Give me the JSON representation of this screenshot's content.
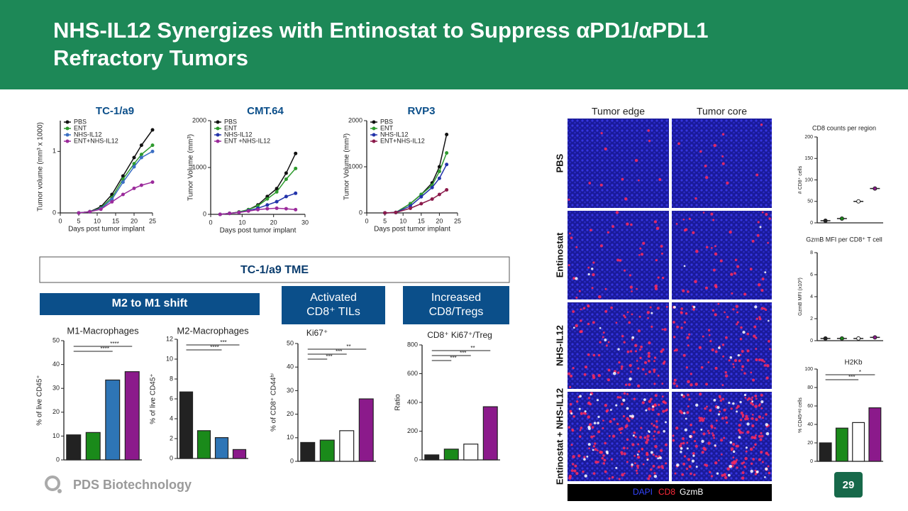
{
  "header": {
    "title_lines": [
      "NHS-IL12 Synergizes with Entinostat to Suppress αPD1/αPDL1",
      "Refractory Tumors"
    ]
  },
  "section": "TC-1/a9 TME",
  "boxes": [
    {
      "lines": [
        "M2 to M1 shift"
      ]
    },
    {
      "lines": [
        "Activated",
        "CD8⁺ TILs"
      ]
    },
    {
      "lines": [
        "Increased",
        "CD8/Tregs"
      ]
    }
  ],
  "charts": [
    {
      "type": "line",
      "title": "TC-1/a9",
      "xlabel": "Days post tumor implant",
      "ylabel": "Tumor volume (mm³ x 1000)",
      "xlim": [
        0,
        25
      ],
      "xticks": [
        0,
        5,
        10,
        15,
        20,
        25
      ],
      "ylim": [
        0,
        1.5
      ],
      "yticks": [
        0,
        1
      ],
      "x": [
        5,
        8,
        11,
        14,
        17,
        20,
        22,
        25
      ],
      "series": [
        {
          "name": "PBS",
          "color": "#111111",
          "values": [
            0,
            0.02,
            0.1,
            0.3,
            0.6,
            0.9,
            1.1,
            1.35
          ]
        },
        {
          "name": "ENT",
          "color": "#2e9a2e",
          "values": [
            0,
            0.02,
            0.08,
            0.25,
            0.55,
            0.8,
            0.95,
            1.1
          ]
        },
        {
          "name": "NHS-IL12",
          "color": "#3b6fc4",
          "values": [
            0,
            0.02,
            0.07,
            0.22,
            0.5,
            0.75,
            0.9,
            1.0
          ]
        },
        {
          "name": "ENT+NHS-IL12",
          "color": "#9b2a9b",
          "values": [
            0,
            0.02,
            0.06,
            0.18,
            0.3,
            0.4,
            0.45,
            0.5
          ]
        }
      ]
    },
    {
      "type": "line",
      "title": "CMT.64",
      "xlabel": "Days post tumor implant",
      "ylabel": "Tumor Volume (mm³)",
      "xlim": [
        0,
        30
      ],
      "xticks": [
        0,
        10,
        20,
        30
      ],
      "ylim": [
        0,
        2000
      ],
      "yticks": [
        0,
        1000,
        2000
      ],
      "x": [
        3,
        6,
        9,
        12,
        15,
        18,
        21,
        24,
        27
      ],
      "series": [
        {
          "name": "PBS",
          "color": "#111111",
          "values": [
            0,
            20,
            50,
            100,
            200,
            380,
            550,
            880,
            1300
          ]
        },
        {
          "name": "ENT",
          "color": "#2e9a2e",
          "values": [
            0,
            20,
            50,
            100,
            180,
            330,
            480,
            750,
            980
          ]
        },
        {
          "name": "NHS-IL12",
          "color": "#2233aa",
          "values": [
            0,
            20,
            40,
            80,
            130,
            200,
            270,
            380,
            450
          ]
        },
        {
          "name": "ENT +NHS-IL12",
          "color": "#9b2a9b",
          "values": [
            0,
            20,
            40,
            70,
            100,
            120,
            130,
            120,
            100
          ]
        }
      ]
    },
    {
      "type": "line",
      "title": "RVP3",
      "xlabel": "Days post tumor implant",
      "ylabel": "Tumor Volume (mm³)",
      "xlim": [
        0,
        25
      ],
      "xticks": [
        0,
        5,
        10,
        15,
        20,
        25
      ],
      "ylim": [
        0,
        2000
      ],
      "yticks": [
        0,
        1000,
        2000
      ],
      "x": [
        5,
        8,
        12,
        15,
        18,
        20,
        22
      ],
      "series": [
        {
          "name": "PBS",
          "color": "#111111",
          "values": [
            0,
            10,
            200,
            400,
            650,
            1000,
            1700
          ]
        },
        {
          "name": "ENT",
          "color": "#2e9a2e",
          "values": [
            0,
            10,
            200,
            400,
            600,
            900,
            1300
          ]
        },
        {
          "name": "NHS-IL12",
          "color": "#2233aa",
          "values": [
            0,
            10,
            150,
            350,
            550,
            750,
            1050
          ]
        },
        {
          "name": "ENT+NHS-IL12",
          "color": "#8b1a4b",
          "values": [
            0,
            10,
            100,
            200,
            300,
            400,
            500
          ]
        }
      ]
    },
    {
      "type": "bar",
      "title": "M1-Macrophages",
      "ylabel": "% of live CD45⁺",
      "ylim": [
        0,
        50
      ],
      "yticks": [
        0,
        10,
        20,
        30,
        40,
        50
      ],
      "values": [
        10.5,
        11.5,
        33.5,
        37
      ],
      "colors": [
        "#222222",
        "#1a8a1a",
        "#2e75b6",
        "#8b1a8b"
      ],
      "annotations": [
        "****",
        "****"
      ]
    },
    {
      "type": "bar",
      "title": "M2-Macrophages",
      "ylabel": "% of live CD45⁺",
      "ylim": [
        0,
        12
      ],
      "yticks": [
        0,
        2,
        4,
        6,
        8,
        10,
        12
      ],
      "values": [
        6.7,
        2.8,
        2.1,
        0.9
      ],
      "colors": [
        "#222222",
        "#1a8a1a",
        "#2e75b6",
        "#8b1a8b"
      ],
      "annotations": [
        "***",
        "****"
      ]
    },
    {
      "type": "bar",
      "title": "Ki67⁺",
      "ylabel": "% of CD8⁺ CD44ʰⁱ",
      "ylim": [
        0,
        50
      ],
      "yticks": [
        0,
        10,
        20,
        30,
        40,
        50
      ],
      "values": [
        8,
        9,
        13,
        26.5
      ],
      "colors": [
        "#222222",
        "#1a8a1a",
        "#ffffff",
        "#8b1a8b"
      ],
      "annotations": [
        "**",
        "***",
        "***"
      ]
    },
    {
      "type": "bar",
      "title": "CD8⁺ Ki67⁺/Treg",
      "ylabel": "Ratio",
      "ylim": [
        0,
        800
      ],
      "yticks": [
        0,
        200,
        400,
        600,
        800
      ],
      "values": [
        35,
        75,
        110,
        370
      ],
      "colors": [
        "#222222",
        "#1a8a1a",
        "#ffffff",
        "#8b1a8b"
      ],
      "annotations": [
        "**",
        "***",
        "***"
      ]
    },
    {
      "type": "dot",
      "title": "CD8 counts per region",
      "ylabel": "# CD8⁺ cells",
      "ylim": [
        0,
        200
      ],
      "yticks": [
        0,
        50,
        100,
        150,
        200
      ],
      "values": [
        5,
        10,
        50,
        80
      ],
      "colors": [
        "#222222",
        "#1a8a1a",
        "#ffffff",
        "#8b1a8b"
      ]
    },
    {
      "type": "dot",
      "title": "GzmB MFI per CD8⁺ T cell",
      "ylabel": "GzmB MFI (x10³)",
      "ylim": [
        0,
        8
      ],
      "yticks": [
        0,
        2,
        4,
        6,
        8
      ],
      "values": [
        0.2,
        0.2,
        0.2,
        0.3
      ],
      "colors": [
        "#222222",
        "#1a8a1a",
        "#ffffff",
        "#8b1a8b"
      ]
    },
    {
      "type": "bar",
      "title": "H2Kb",
      "ylabel": "% CD45ⁿᵉᵍ cells",
      "ylim": [
        0,
        100
      ],
      "yticks": [
        0,
        20,
        40,
        60,
        80,
        100
      ],
      "values": [
        20,
        36,
        42,
        58
      ],
      "colors": [
        "#222222",
        "#1a8a1a",
        "#ffffff",
        "#8b1a8b"
      ],
      "annotations": [
        "*",
        "***"
      ]
    }
  ],
  "images": {
    "columns": [
      "Tumor edge",
      "Tumor core"
    ],
    "rows": [
      "PBS",
      "Entinostat",
      "NHS-IL12",
      "Entinostat + NHS-IL12"
    ],
    "legend": [
      "DAPI",
      "CD8",
      "GzmB"
    ]
  },
  "footer": {
    "logo": "PDS Biotechnology",
    "page": "29"
  }
}
